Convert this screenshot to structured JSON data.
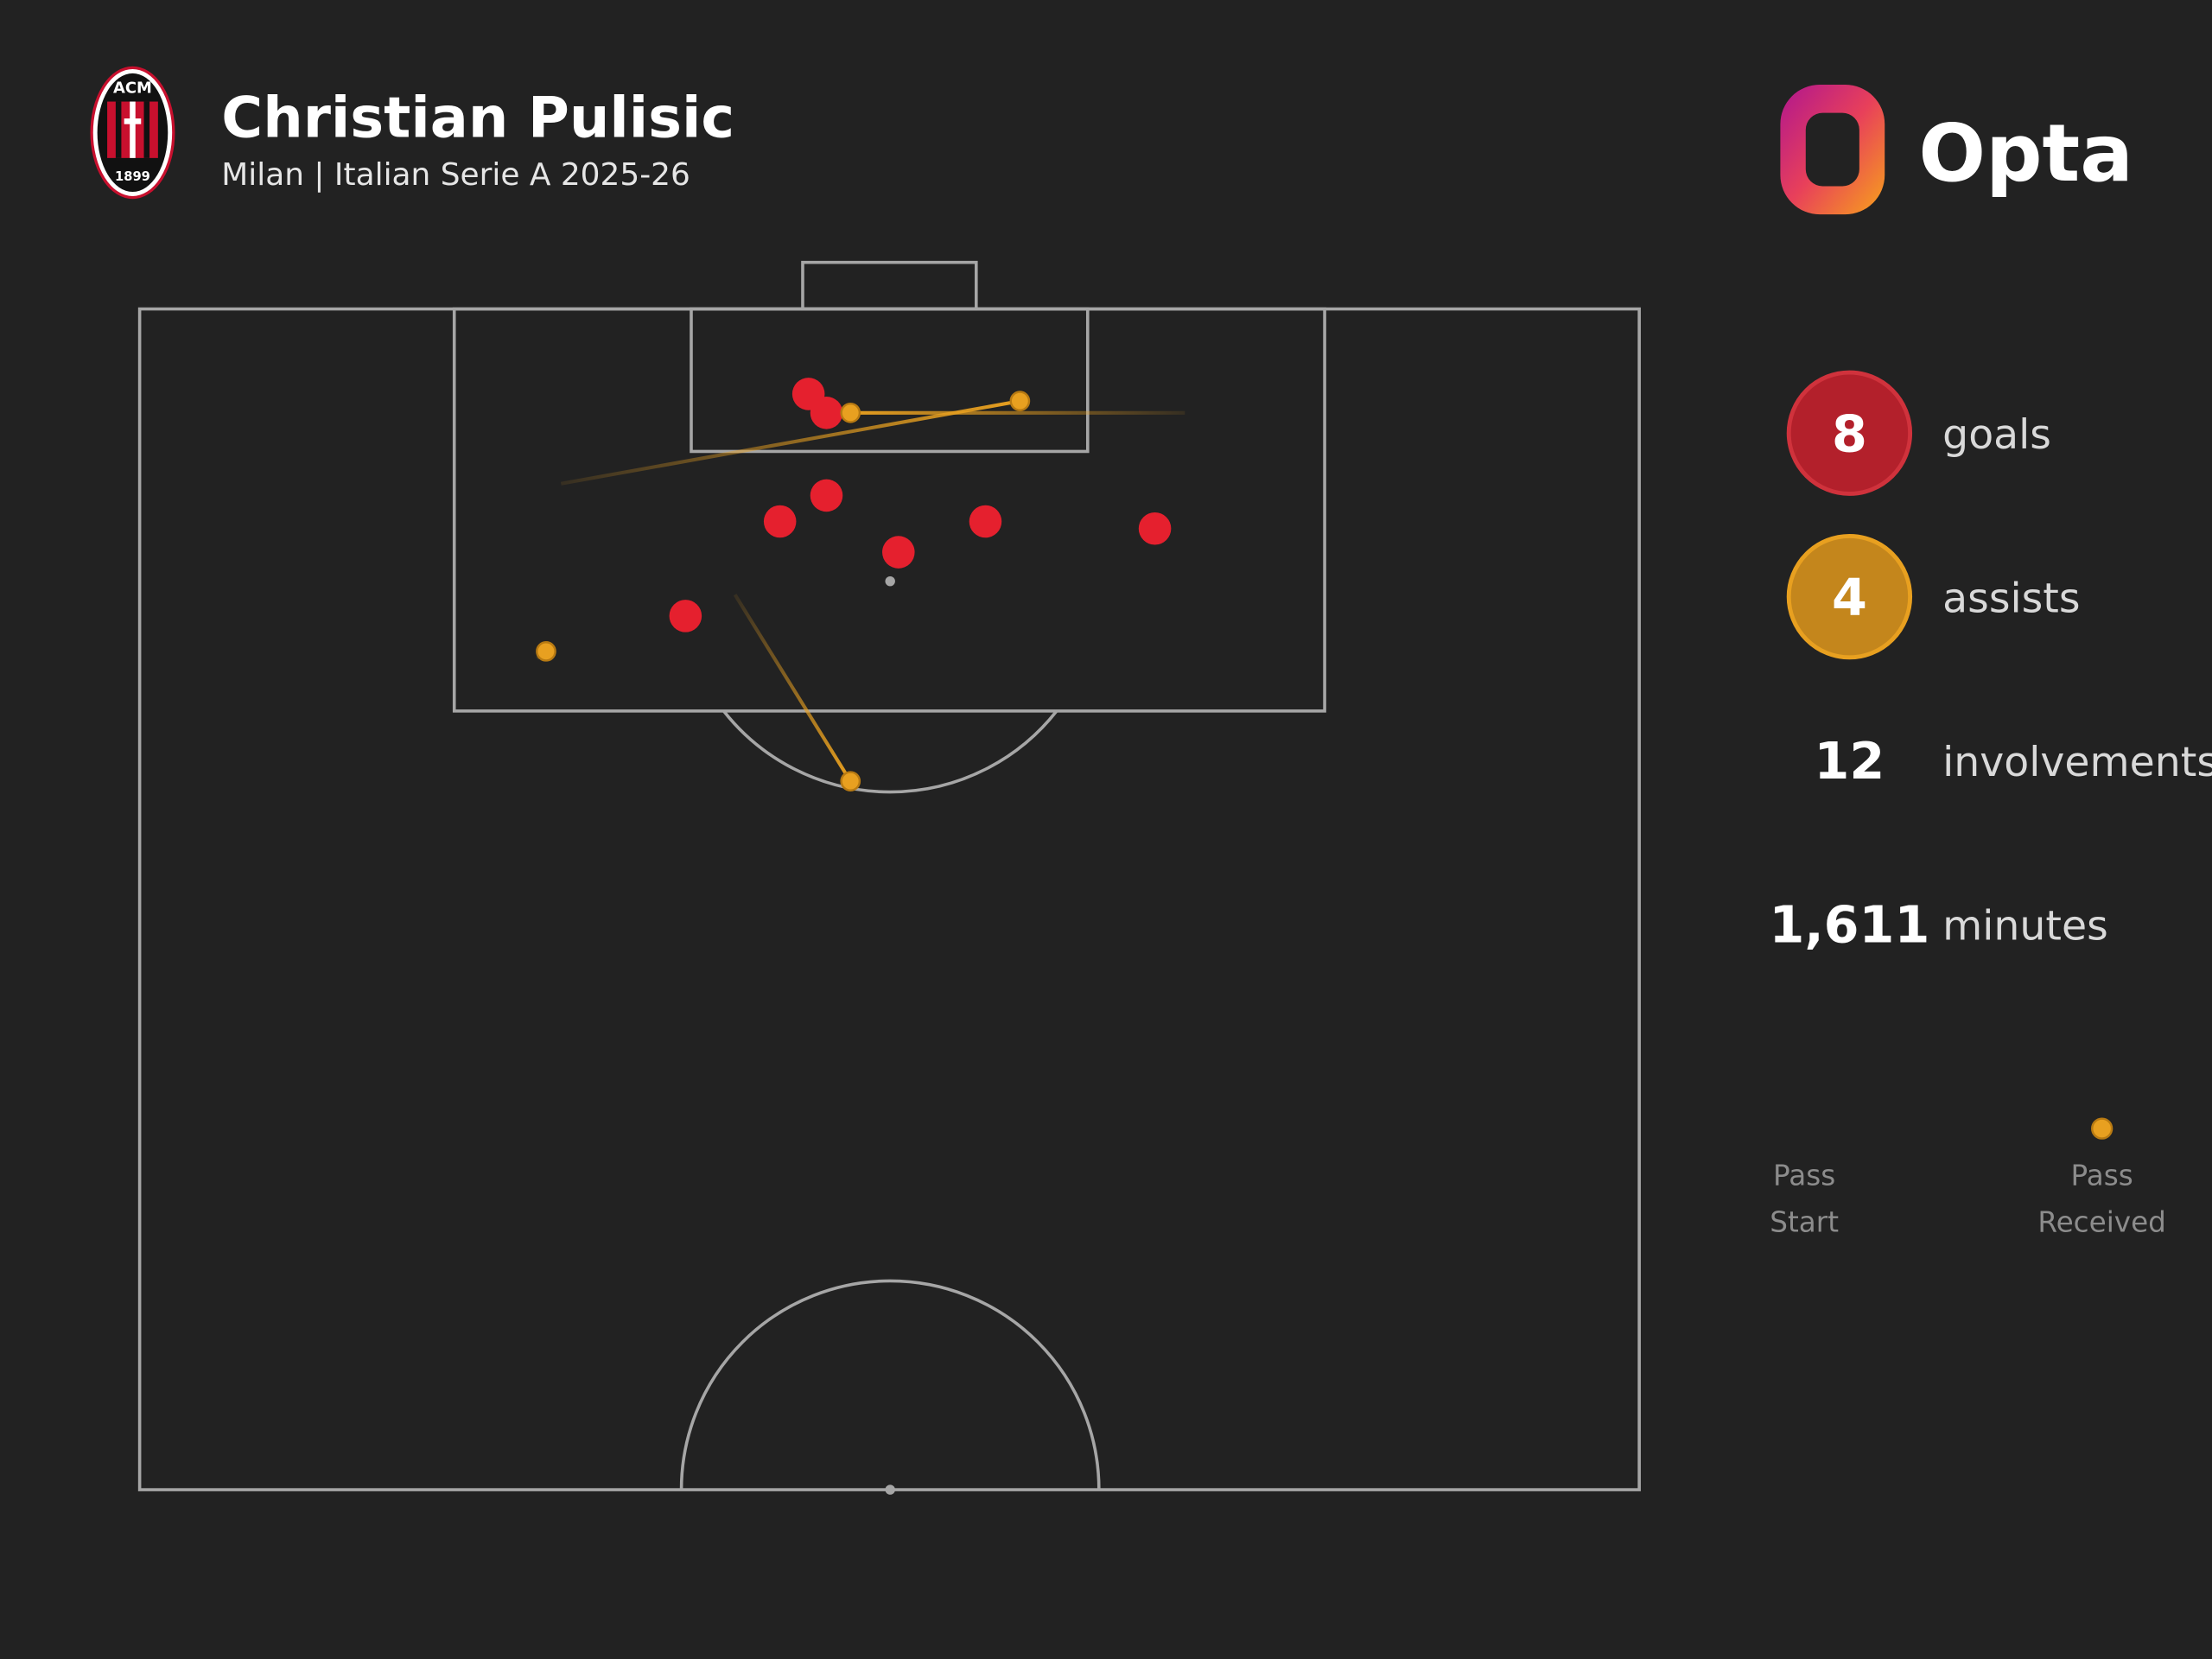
{
  "header": {
    "title": "Christian Pulisic",
    "subtitle": "Milan | Italian Serie A 2025-26",
    "brand": "Opta",
    "badge_top": "ACM",
    "badge_year": "1899"
  },
  "stats": [
    {
      "value": "8",
      "label": "goals"
    },
    {
      "value": "4",
      "label": "assists"
    },
    {
      "value": "12",
      "label": "involvements"
    },
    {
      "value": "1,611",
      "label": "minutes"
    }
  ],
  "legend": {
    "start": [
      "Pass",
      "Start"
    ],
    "end": [
      "Pass",
      "Received"
    ]
  },
  "goals": [
    {
      "x": 96.4,
      "y": 44.6
    },
    {
      "x": 95.6,
      "y": 45.8
    },
    {
      "x": 91.0,
      "y": 42.7
    },
    {
      "x": 92.1,
      "y": 45.8
    },
    {
      "x": 89.7,
      "y": 50.6
    },
    {
      "x": 91.0,
      "y": 56.4
    },
    {
      "x": 90.7,
      "y": 67.7
    },
    {
      "x": 87.0,
      "y": 36.4
    }
  ],
  "assists": [
    {
      "start": {
        "x": 92.6,
        "y": 28.1
      },
      "end": {
        "x": 96.1,
        "y": 58.7
      }
    },
    {
      "start": {
        "x": 95.6,
        "y": 69.7
      },
      "end": {
        "x": 95.6,
        "y": 47.4
      }
    },
    {
      "start": {
        "x": 87.9,
        "y": 39.7
      },
      "end": {
        "x": 80.0,
        "y": 47.4
      }
    },
    {
      "start": {
        "x": 85.2,
        "y": 26.5
      },
      "end": {
        "x": 85.5,
        "y": 27.1
      }
    }
  ]
}
